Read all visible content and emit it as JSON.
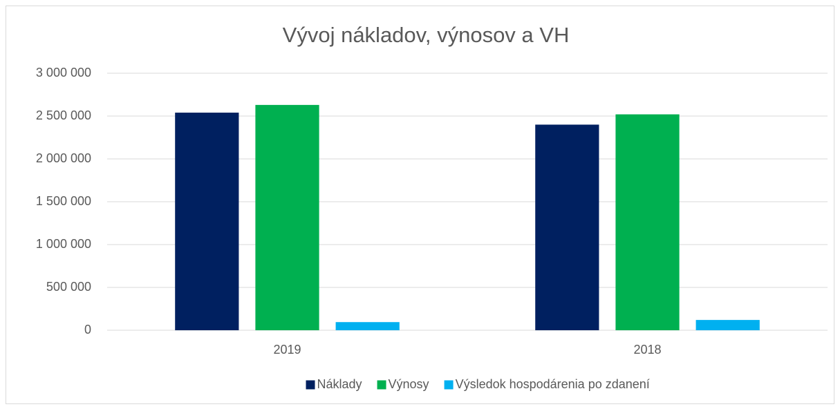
{
  "chart_data": {
    "type": "bar",
    "title": "Vývoj nákladov, výnosov a VH",
    "categories": [
      "2019",
      "2018"
    ],
    "series": [
      {
        "name": "Náklady",
        "color": "#002060",
        "values": [
          2540000,
          2400000
        ]
      },
      {
        "name": "Výnosy",
        "color": "#00b050",
        "values": [
          2630000,
          2520000
        ]
      },
      {
        "name": "Výsledok hospodárenia po zdanení",
        "color": "#00b0f0",
        "values": [
          95000,
          120000
        ]
      }
    ],
    "ylim": [
      0,
      3000000
    ],
    "yticks": [
      0,
      {
        "value": 500000,
        "label": "500 000"
      },
      {
        "value": 1000000,
        "label": "1 000 000"
      },
      {
        "value": 1500000,
        "label": "1 500 000"
      },
      {
        "value": 2000000,
        "label": "2 000 000"
      },
      {
        "value": 2500000,
        "label": "2 500 000"
      },
      {
        "value": 3000000,
        "label": "3 000 000"
      }
    ],
    "grid": true,
    "legend": "bottom"
  }
}
